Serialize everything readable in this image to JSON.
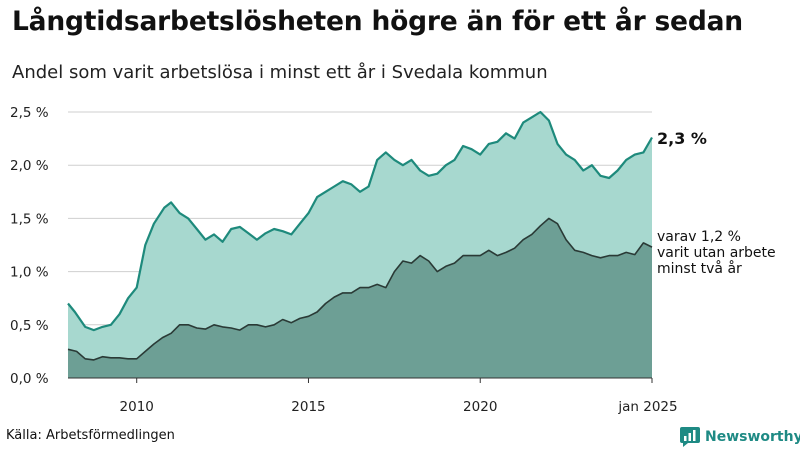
{
  "title": "Långtidsarbetslösheten högre än för ett år sedan",
  "subtitle": "Andel som varit arbetslösa i minst ett år i Svedala kommun",
  "source": "Källa: Arbetsförmedlingen",
  "logo_text": "Newsworthy",
  "colors": {
    "total_fill": "#a7d8cf",
    "total_line": "#1e8a7c",
    "sub_fill": "#6d9f95",
    "sub_line": "#2a3a36",
    "logo": "#1e8a84"
  },
  "chart_data": {
    "type": "area",
    "x_ticks": [
      "2010",
      "2015",
      "2020",
      "jan 2025"
    ],
    "y_ticks": [
      "0,0 %",
      "0,5 %",
      "1,0 %",
      "1,5 %",
      "2,0 %",
      "2,5 %"
    ],
    "ylim": [
      0,
      2.5
    ],
    "xlim": [
      2008.0,
      2025.0
    ],
    "grid": true,
    "end_labels": {
      "total": "2,3 %",
      "sub": [
        "varav 1,2 %",
        "varit utan arbete",
        "minst två år"
      ]
    },
    "series": [
      {
        "key": "total",
        "x": [
          2008.0,
          2008.2,
          2008.5,
          2008.75,
          2009.0,
          2009.25,
          2009.5,
          2009.75,
          2010.0,
          2010.25,
          2010.5,
          2010.8,
          2011.0,
          2011.25,
          2011.5,
          2011.75,
          2012.0,
          2012.25,
          2012.5,
          2012.75,
          2013.0,
          2013.25,
          2013.5,
          2013.75,
          2014.0,
          2014.25,
          2014.5,
          2014.75,
          2015.0,
          2015.25,
          2015.5,
          2015.75,
          2016.0,
          2016.25,
          2016.5,
          2016.75,
          2017.0,
          2017.25,
          2017.5,
          2017.75,
          2018.0,
          2018.25,
          2018.5,
          2018.75,
          2019.0,
          2019.25,
          2019.5,
          2019.75,
          2020.0,
          2020.25,
          2020.5,
          2020.75,
          2021.0,
          2021.25,
          2021.5,
          2021.75,
          2022.0,
          2022.25,
          2022.5,
          2022.75,
          2023.0,
          2023.25,
          2023.5,
          2023.75,
          2024.0,
          2024.25,
          2024.5,
          2024.75,
          2025.0
        ],
        "y": [
          0.7,
          0.62,
          0.48,
          0.45,
          0.48,
          0.5,
          0.6,
          0.75,
          0.85,
          1.25,
          1.45,
          1.6,
          1.65,
          1.55,
          1.5,
          1.4,
          1.3,
          1.35,
          1.28,
          1.4,
          1.42,
          1.36,
          1.3,
          1.36,
          1.4,
          1.38,
          1.35,
          1.45,
          1.55,
          1.7,
          1.75,
          1.8,
          1.85,
          1.82,
          1.75,
          1.8,
          2.05,
          2.12,
          2.05,
          2.0,
          2.05,
          1.95,
          1.9,
          1.92,
          2.0,
          2.05,
          2.18,
          2.15,
          2.1,
          2.2,
          2.22,
          2.3,
          2.25,
          2.4,
          2.45,
          2.5,
          2.42,
          2.2,
          2.1,
          2.05,
          1.95,
          2.0,
          1.9,
          1.88,
          1.95,
          2.05,
          2.1,
          2.12,
          2.26
        ]
      },
      {
        "key": "sub",
        "x": [
          2008.0,
          2008.25,
          2008.5,
          2008.75,
          2009.0,
          2009.25,
          2009.5,
          2009.75,
          2010.0,
          2010.25,
          2010.5,
          2010.75,
          2011.0,
          2011.25,
          2011.5,
          2011.75,
          2012.0,
          2012.25,
          2012.5,
          2012.75,
          2013.0,
          2013.25,
          2013.5,
          2013.75,
          2014.0,
          2014.25,
          2014.5,
          2014.75,
          2015.0,
          2015.25,
          2015.5,
          2015.75,
          2016.0,
          2016.25,
          2016.5,
          2016.75,
          2017.0,
          2017.25,
          2017.5,
          2017.75,
          2018.0,
          2018.25,
          2018.5,
          2018.75,
          2019.0,
          2019.25,
          2019.5,
          2019.75,
          2020.0,
          2020.25,
          2020.5,
          2020.75,
          2021.0,
          2021.25,
          2021.5,
          2021.75,
          2022.0,
          2022.25,
          2022.5,
          2022.75,
          2023.0,
          2023.25,
          2023.5,
          2023.75,
          2024.0,
          2024.25,
          2024.5,
          2024.75,
          2025.0
        ],
        "y": [
          0.27,
          0.25,
          0.18,
          0.17,
          0.2,
          0.19,
          0.19,
          0.18,
          0.18,
          0.25,
          0.32,
          0.38,
          0.42,
          0.5,
          0.5,
          0.47,
          0.46,
          0.5,
          0.48,
          0.47,
          0.45,
          0.5,
          0.5,
          0.48,
          0.5,
          0.55,
          0.52,
          0.56,
          0.58,
          0.62,
          0.7,
          0.76,
          0.8,
          0.8,
          0.85,
          0.85,
          0.88,
          0.85,
          1.0,
          1.1,
          1.08,
          1.15,
          1.1,
          1.0,
          1.05,
          1.08,
          1.15,
          1.15,
          1.15,
          1.2,
          1.15,
          1.18,
          1.22,
          1.3,
          1.35,
          1.43,
          1.5,
          1.45,
          1.3,
          1.2,
          1.18,
          1.15,
          1.13,
          1.15,
          1.15,
          1.18,
          1.16,
          1.27,
          1.23
        ]
      }
    ]
  }
}
